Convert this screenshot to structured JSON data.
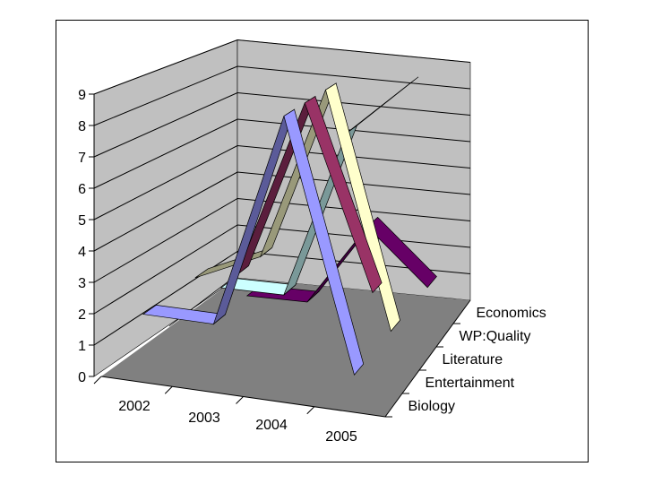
{
  "chart_data": {
    "type": "line",
    "style": "3d-ribbon",
    "categories": [
      "2002",
      "2003",
      "2004",
      "2005"
    ],
    "ylim": [
      0,
      9
    ],
    "yticks": [
      "0",
      "1",
      "2",
      "3",
      "4",
      "5",
      "6",
      "7",
      "8",
      "9"
    ],
    "grid": true,
    "series": [
      {
        "name": "Biology",
        "values": [
          2,
          2,
          9,
          1
        ],
        "color": "#9999FF"
      },
      {
        "name": "Entertainment",
        "values": [
          1,
          3,
          9,
          3
        ],
        "color": "#993366"
      },
      {
        "name": "Literature",
        "values": [
          2,
          3,
          9,
          1
        ],
        "color": "#FFFFCC"
      },
      {
        "name": "WP:Quality",
        "values": [
          1,
          1,
          7,
          9
        ],
        "color": "#CCFFFF"
      },
      {
        "name": "Economics",
        "values": [
          0,
          0,
          3,
          1
        ],
        "color": "#660066"
      }
    ],
    "colors": {
      "wall": "#C0C0C0",
      "floor": "#808080"
    }
  }
}
